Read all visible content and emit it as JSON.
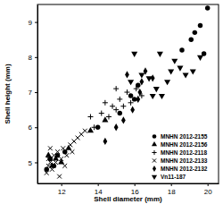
{
  "chart_data": {
    "type": "scatter",
    "x_label": "Shell diameter (mm)",
    "y_label": "Shell height (mm)",
    "xlim": [
      10.7,
      20.6
    ],
    "xticks": [
      12,
      14,
      16,
      18,
      20
    ],
    "ylim": [
      4.4,
      9.5
    ],
    "yticks": [
      5,
      6,
      7,
      8,
      9
    ],
    "legend": "lower right",
    "series": [
      {
        "name": "MNHN 2012-2155",
        "color": "#000000",
        "marker": "circle",
        "x": [
          11.2,
          11.4,
          11.6,
          11.8,
          12.2,
          14.0,
          15.2,
          15.8,
          16.2,
          16.0,
          18.6,
          19.1,
          19.3,
          19.6,
          20.0,
          19.8
        ],
        "values": [
          4.8,
          5.1,
          4.9,
          5.2,
          5.3,
          6.0,
          6.4,
          6.9,
          7.2,
          6.8,
          8.2,
          8.5,
          8.7,
          8.9,
          9.4,
          8.1
        ]
      },
      {
        "name": "MNHN 2012-2156",
        "color": "#000000",
        "marker": "triangle-up",
        "x": [
          11.3,
          11.5,
          11.7,
          12.0,
          12.4,
          13.6,
          14.4
        ],
        "values": [
          5.2,
          4.9,
          5.1,
          5.0,
          5.4,
          5.9,
          6.2
        ]
      },
      {
        "name": "MNHN 2012-2118",
        "color": "#000000",
        "marker": "plus",
        "x": [
          13.8,
          14.2,
          14.6,
          14.8,
          15.0,
          15.2,
          15.4,
          15.6,
          15.8,
          16.1,
          14.4,
          15.0,
          16.4,
          13.6
        ],
        "values": [
          6.0,
          6.4,
          6.3,
          6.6,
          6.5,
          6.8,
          6.6,
          7.0,
          6.7,
          7.1,
          6.7,
          7.1,
          6.9,
          6.3
        ]
      },
      {
        "name": "MNHN 2012-2133",
        "color": "#000000",
        "marker": "x",
        "x": [
          11.2,
          11.3,
          11.4,
          11.3,
          11.5,
          11.6,
          11.7,
          11.8,
          12.0,
          12.1,
          12.3,
          12.5,
          12.7,
          12.9,
          13.1,
          11.9,
          12.2,
          13.3,
          12.6,
          11.4
        ],
        "values": [
          4.7,
          4.9,
          5.0,
          5.1,
          4.8,
          5.2,
          5.0,
          5.3,
          5.1,
          5.4,
          5.2,
          5.5,
          5.6,
          5.7,
          5.8,
          4.6,
          4.9,
          5.9,
          5.3,
          5.4
        ]
      },
      {
        "name": "MNHN 2012-2132",
        "color": "#000000",
        "marker": "diamond",
        "x": [
          14.4,
          15.0,
          15.4,
          15.9,
          16.2,
          16.4,
          16.6,
          16.3,
          17.0,
          15.6
        ],
        "values": [
          5.6,
          6.0,
          6.2,
          6.5,
          6.8,
          7.3,
          7.6,
          7.0,
          7.4,
          7.5
        ]
      },
      {
        "name": "Vn11-187",
        "color": "#000000",
        "marker": "triangle-down",
        "x": [
          15.8,
          16.4,
          16.8,
          17.2,
          17.5,
          17.8,
          18.0,
          18.2,
          18.5,
          18.8,
          19.2,
          16.0,
          17.4,
          19.6,
          17.0
        ],
        "values": [
          7.3,
          7.5,
          7.4,
          7.1,
          6.9,
          7.3,
          7.6,
          7.9,
          7.7,
          7.5,
          7.6,
          8.1,
          8.1,
          8.0,
          6.9
        ]
      }
    ]
  }
}
